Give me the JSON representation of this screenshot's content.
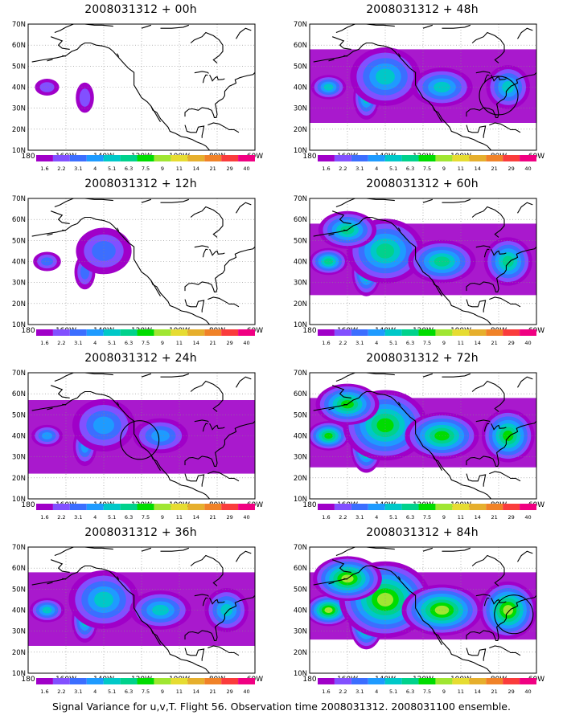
{
  "figure": {
    "caption": "Signal Variance for u,v,T. Flight 56. Observation time 2008031312. 2008031100 ensemble."
  },
  "map": {
    "lat_labels": [
      "70N",
      "60N",
      "50N",
      "40N",
      "30N",
      "20N",
      "10N"
    ],
    "lon_labels": [
      "180",
      "160W",
      "140W",
      "120W",
      "100W",
      "80W",
      "60W"
    ]
  },
  "colorbar": {
    "labels": [
      "1.6",
      "2.2",
      "3.1",
      "4",
      "5.1",
      "6.3",
      "7.5",
      "9",
      "11",
      "14",
      "21",
      "29",
      "40"
    ],
    "colors": [
      "#a000c8",
      "#8250ff",
      "#3c6eff",
      "#1e9bff",
      "#00c8c8",
      "#00d28c",
      "#00dc00",
      "#a0e632",
      "#e6dc32",
      "#e6af2d",
      "#f08228",
      "#fa3c3c",
      "#f00082"
    ]
  },
  "colors": {
    "coastline": "#000000",
    "grid": "#888888",
    "observation_circle": "#000000"
  },
  "panels": [
    {
      "title": "2008031312 + 00h",
      "level": 0
    },
    {
      "title": "2008031312 + 12h",
      "level": 1
    },
    {
      "title": "2008031312 + 24h",
      "level": 2
    },
    {
      "title": "2008031312 + 36h",
      "level": 3
    },
    {
      "title": "2008031312 + 48h",
      "level": 3
    },
    {
      "title": "2008031312 + 60h",
      "level": 4
    },
    {
      "title": "2008031312 + 72h",
      "level": 5
    },
    {
      "title": "2008031312 + 84h",
      "level": 6
    }
  ]
}
